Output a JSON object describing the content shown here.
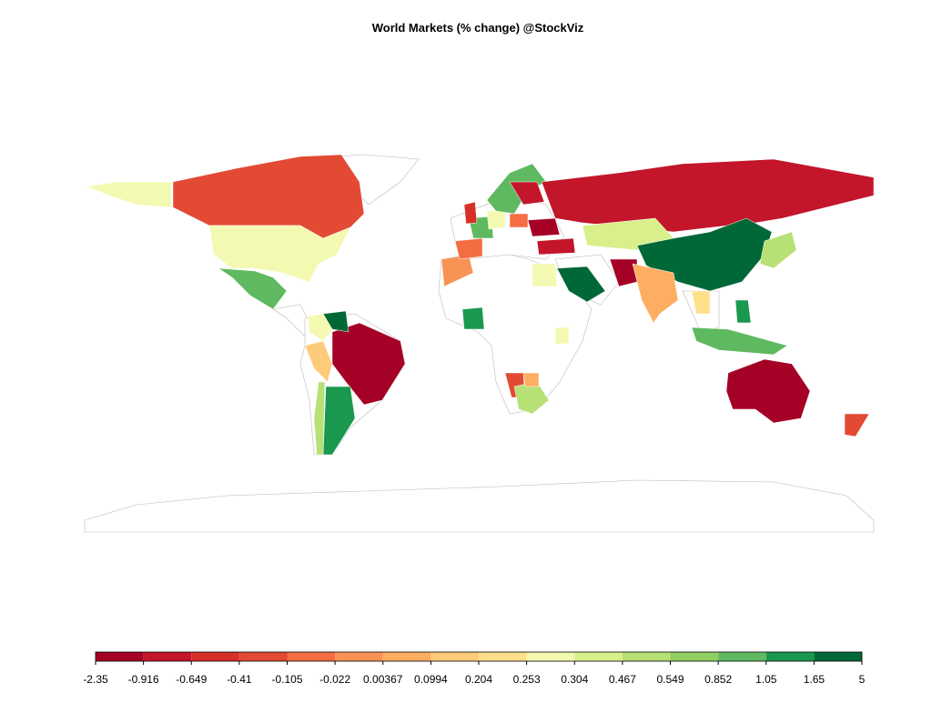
{
  "title": "World Markets (% change) @StockViz",
  "legend": {
    "breaks": [
      -2.35,
      -0.916,
      -0.649,
      -0.41,
      -0.105,
      -0.022,
      0.00367,
      0.0994,
      0.204,
      0.253,
      0.304,
      0.467,
      0.549,
      0.852,
      1.05,
      1.65,
      5
    ],
    "colors": [
      "#a50026",
      "#c3162b",
      "#d73027",
      "#e34a33",
      "#f46d43",
      "#f99255",
      "#fdae61",
      "#fecb7a",
      "#fee08b",
      "#f3f9b0",
      "#d9ef8b",
      "#b7e075",
      "#91cf60",
      "#5fb960",
      "#1a9850",
      "#006837"
    ]
  }
}
